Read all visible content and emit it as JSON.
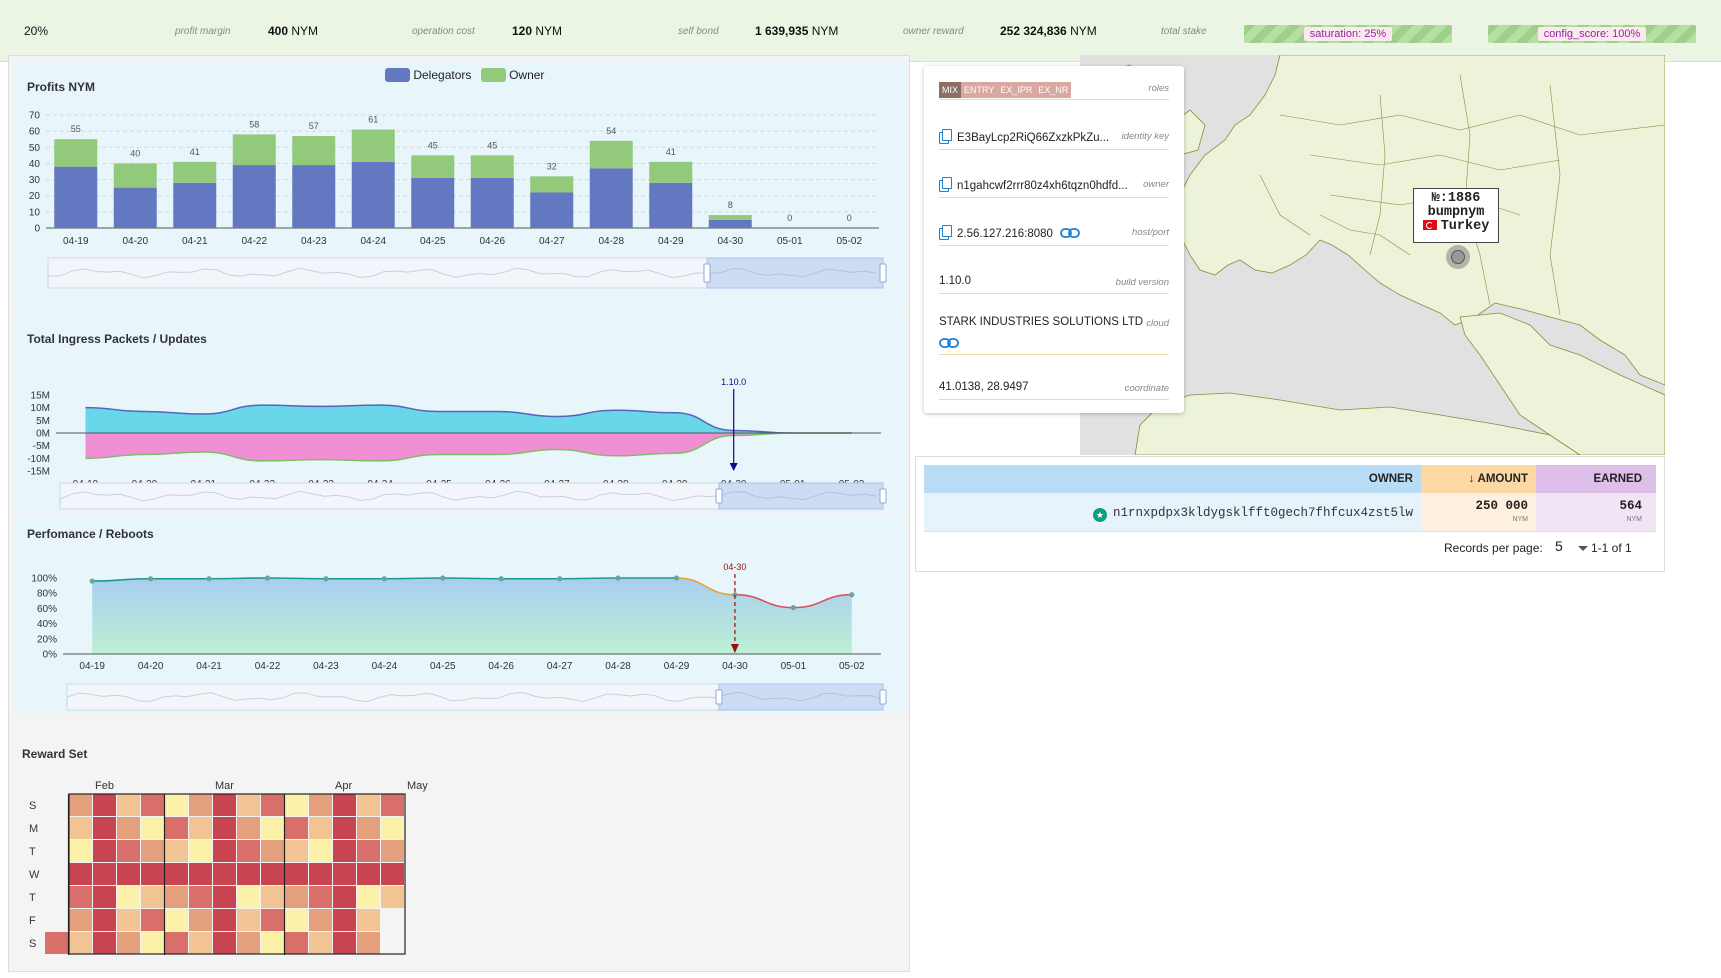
{
  "topbar": {
    "profit_margin_value": "20%",
    "profit_margin_label": "profit margin",
    "operation_cost_value": "400",
    "operation_cost_unit": "NYM",
    "operation_cost_label": "operation cost",
    "self_bond_value": "120",
    "self_bond_unit": "NYM",
    "self_bond_label": "self bond",
    "owner_reward_value": "1 639,935",
    "owner_reward_unit": "NYM",
    "owner_reward_label": "owner reward",
    "total_stake_value": "252 324,836",
    "total_stake_unit": "NYM",
    "total_stake_label": "total stake",
    "saturation": "saturation: 25%",
    "saturation_level": 0.25,
    "config_score": "config_score: 100%",
    "config_score_level": 1.0
  },
  "profits_chart": {
    "title": "Profits NYM",
    "legend": [
      "Delegators",
      "Owner"
    ],
    "colors": {
      "delegators": "#6478c2",
      "owner": "#93c97b"
    }
  },
  "ingress_chart": {
    "title": "Total Ingress Packets / Updates",
    "marker_label": "1.10.0",
    "marker_date": "04-30"
  },
  "perf_chart": {
    "title": "Perfomance / Reboots",
    "marker_label": "04-30",
    "marker_date": "04-30"
  },
  "reward_set": {
    "title": "Reward Set",
    "months": [
      "Feb",
      "Mar",
      "Apr",
      "May"
    ],
    "days": [
      "S",
      "M",
      "T",
      "W",
      "T",
      "F",
      "S"
    ]
  },
  "chart_data": [
    {
      "type": "bar",
      "title": "Profits NYM",
      "categories": [
        "04-19",
        "04-20",
        "04-21",
        "04-22",
        "04-23",
        "04-24",
        "04-25",
        "04-26",
        "04-27",
        "04-28",
        "04-29",
        "04-30",
        "05-01",
        "05-02"
      ],
      "series": [
        {
          "name": "Delegators",
          "values": [
            38,
            25,
            28,
            39,
            39,
            41,
            31,
            31,
            22,
            37,
            28,
            5,
            0,
            0
          ]
        },
        {
          "name": "Owner",
          "values": [
            17,
            15,
            13,
            19,
            18,
            20,
            14,
            14,
            10,
            17,
            13,
            3,
            0,
            0
          ]
        }
      ],
      "totals": [
        55,
        40,
        41,
        58,
        57,
        61,
        45,
        45,
        32,
        54,
        41,
        8,
        0,
        0
      ],
      "yticks": [
        "0",
        "10",
        "20",
        "30",
        "40",
        "50",
        "60",
        "70"
      ],
      "ylim": [
        0,
        70
      ],
      "stacked": true
    },
    {
      "type": "area",
      "title": "Total Ingress Packets / Updates",
      "categories": [
        "04-19",
        "04-20",
        "04-21",
        "04-22",
        "04-23",
        "04-24",
        "04-25",
        "04-26",
        "04-27",
        "04-28",
        "04-29",
        "04-30",
        "05-01",
        "05-02"
      ],
      "series": [
        {
          "values": [
            10,
            8.5,
            7.5,
            11,
            10.5,
            11,
            8.5,
            8.5,
            6.5,
            9,
            8,
            1,
            0,
            0
          ]
        },
        {
          "values": [
            -10,
            -8.5,
            -7.5,
            -11,
            -10.5,
            -11,
            -8.5,
            -8.5,
            -6.5,
            -9,
            -8,
            -1,
            0,
            0
          ]
        }
      ],
      "yticks": [
        "15M",
        "10M",
        "5M",
        "0M",
        "-5M",
        "-10M",
        "-15M"
      ],
      "ylim": [
        -15,
        15
      ]
    },
    {
      "type": "line",
      "title": "Perfomance / Reboots",
      "categories": [
        "04-19",
        "04-20",
        "04-21",
        "04-22",
        "04-23",
        "04-24",
        "04-25",
        "04-26",
        "04-27",
        "04-28",
        "04-29",
        "04-30",
        "05-01",
        "05-02"
      ],
      "values": [
        96,
        99,
        99,
        100,
        99,
        99,
        100,
        99,
        99,
        100,
        100,
        78,
        61,
        78
      ],
      "yticks": [
        "100%",
        "80%",
        "60%",
        "40%",
        "20%",
        "0%"
      ],
      "ylim": [
        0,
        100
      ]
    }
  ],
  "info": {
    "roles_label": "roles",
    "roles": [
      "MIX",
      "ENTRY",
      "EX_IPR",
      "EX_NR"
    ],
    "identity_key": "E3BayLcp2RiQ66ZxzkPkZu...",
    "identity_key_label": "identity key",
    "owner": "n1gahcwf2rrr80z4xh6tqzn0hdfd...",
    "owner_label": "owner",
    "host": "2.56.127.216:8080",
    "host_label": "host/port",
    "build_version": "1.10.0",
    "build_version_label": "build version",
    "cloud": "STARK INDUSTRIES SOLUTIONS LTD",
    "cloud_label": "cloud",
    "coordinate": "41.0138, 28.9497",
    "coordinate_label": "coordinate"
  },
  "map": {
    "tooltip_number": "№:1886",
    "tooltip_name": "bumpnym",
    "tooltip_country": "Turkey"
  },
  "table": {
    "headers": {
      "owner": "OWNER",
      "amount": "AMOUNT",
      "earned": "EARNED"
    },
    "rows": [
      {
        "owner": "n1rnxpdpx3kldygsklfft0gech7fhfcux4zst5lw",
        "amount": "250 000",
        "amount_unit": "NYM",
        "earned": "564",
        "earned_unit": "NYM"
      }
    ],
    "records_per_page_label": "Records per page:",
    "records_per_page_value": "5",
    "pagination": "1-1 of 1"
  }
}
